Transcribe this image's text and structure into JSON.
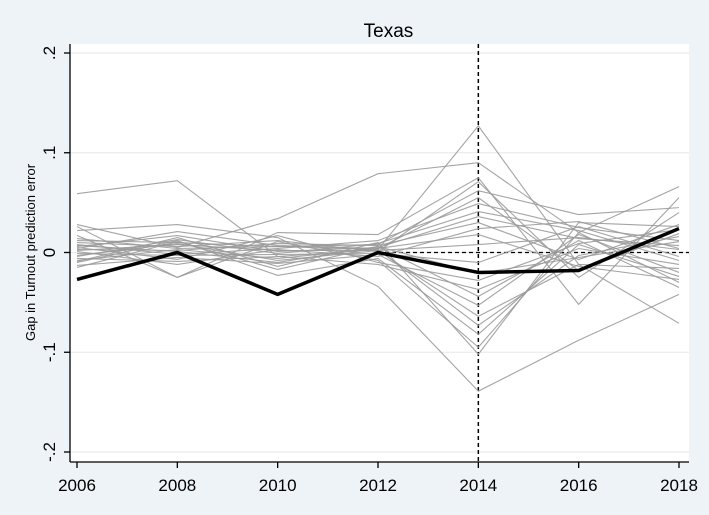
{
  "chart_data": {
    "type": "line",
    "title": "Texas",
    "xlabel": "",
    "ylabel": "Gap in Turnout prediction error",
    "x": [
      2006,
      2008,
      2010,
      2012,
      2014,
      2016,
      2018
    ],
    "xlim": [
      2006,
      2018
    ],
    "ylim": [
      -0.2,
      0.2
    ],
    "x_ticks": [
      "2006",
      "2008",
      "2010",
      "2012",
      "2014",
      "2016",
      "2018"
    ],
    "y_ticks": [
      {
        "value": -0.2,
        "label": "-.2"
      },
      {
        "value": -0.1,
        "label": "-.1"
      },
      {
        "value": 0,
        "label": "0"
      },
      {
        "value": 0.1,
        "label": ".1"
      },
      {
        "value": 0.2,
        "label": ".2"
      }
    ],
    "grid": true,
    "reference_lines": [
      {
        "orientation": "vertical",
        "at": 2014,
        "style": "dashed"
      },
      {
        "orientation": "horizontal",
        "at": 0,
        "style": "dashed",
        "from": 2012
      }
    ],
    "treated_series": {
      "color": "#000000",
      "values": [
        -0.027,
        0.0,
        -0.042,
        0.0,
        -0.02,
        -0.018,
        0.024
      ]
    },
    "placebo_color": "#9a9a9a",
    "placebo_series": [
      [
        0.059,
        0.072,
        -0.004,
        0.003,
        0.127,
        -0.012,
        -0.071
      ],
      [
        0.028,
        0.005,
        0.034,
        0.079,
        0.09,
        0.02,
        0.066
      ],
      [
        0.022,
        0.028,
        0.015,
        -0.034,
        -0.139,
        -0.088,
        -0.042
      ],
      [
        0.017,
        -0.025,
        0.02,
        0.018,
        0.075,
        -0.052,
        0.055
      ],
      [
        0.012,
        0.01,
        0.006,
        0.008,
        0.062,
        0.038,
        0.045
      ],
      [
        -0.009,
        0.015,
        -0.014,
        0.01,
        -0.102,
        0.03,
        0.026
      ],
      [
        0.026,
        -0.025,
        0.011,
        -0.008,
        -0.095,
        0.02,
        -0.03
      ],
      [
        0.004,
        0.021,
        0.007,
        0.004,
        0.055,
        -0.018,
        0.019
      ],
      [
        -0.01,
        0.012,
        -0.023,
        -0.006,
        -0.082,
        0.008,
        -0.024
      ],
      [
        0.008,
        -0.002,
        0.004,
        0.012,
        0.049,
        0.025,
        0.012
      ],
      [
        -0.003,
        0.009,
        -0.008,
        0.002,
        -0.064,
        -0.012,
        -0.016
      ],
      [
        0.006,
        0.017,
        0.001,
        0.005,
        0.036,
        0.014,
        0.007
      ],
      [
        -0.013,
        -0.005,
        -0.011,
        -0.002,
        -0.053,
        0.018,
        -0.02
      ],
      [
        0.003,
        0.002,
        0.009,
        0.007,
        0.03,
        -0.007,
        0.028
      ],
      [
        -0.006,
        -0.009,
        -0.004,
        -0.012,
        -0.037,
        0.004,
        -0.012
      ],
      [
        0.01,
        0.006,
        0.012,
        0.001,
        0.071,
        -0.025,
        0.04
      ],
      [
        -0.015,
        0.011,
        -0.017,
        0.006,
        -0.044,
        0.012,
        -0.035
      ],
      [
        0.001,
        -0.012,
        0.003,
        -0.004,
        0.024,
        0.031,
        0.004
      ],
      [
        0.014,
        0.004,
        0.006,
        0.003,
        -0.073,
        -0.003,
        0.016
      ],
      [
        -0.004,
        0.013,
        -0.001,
        0.009,
        0.041,
        0.022,
        -0.008
      ],
      [
        0.005,
        -0.007,
        0.017,
        -0.01,
        -0.028,
        0.009,
        0.023
      ],
      [
        -0.008,
        0.003,
        -0.006,
        0.004,
        0.018,
        -0.014,
        -0.027
      ],
      [
        0.002,
        0.008,
        0.002,
        0.002,
        0.008,
        0.015,
        0.003
      ],
      [
        -0.001,
        -0.003,
        -0.002,
        -0.001,
        -0.01,
        0.026,
        -0.004
      ],
      [
        0.007,
        0.001,
        -0.01,
        0.006,
        -0.021,
        -0.005,
        0.011
      ]
    ]
  }
}
